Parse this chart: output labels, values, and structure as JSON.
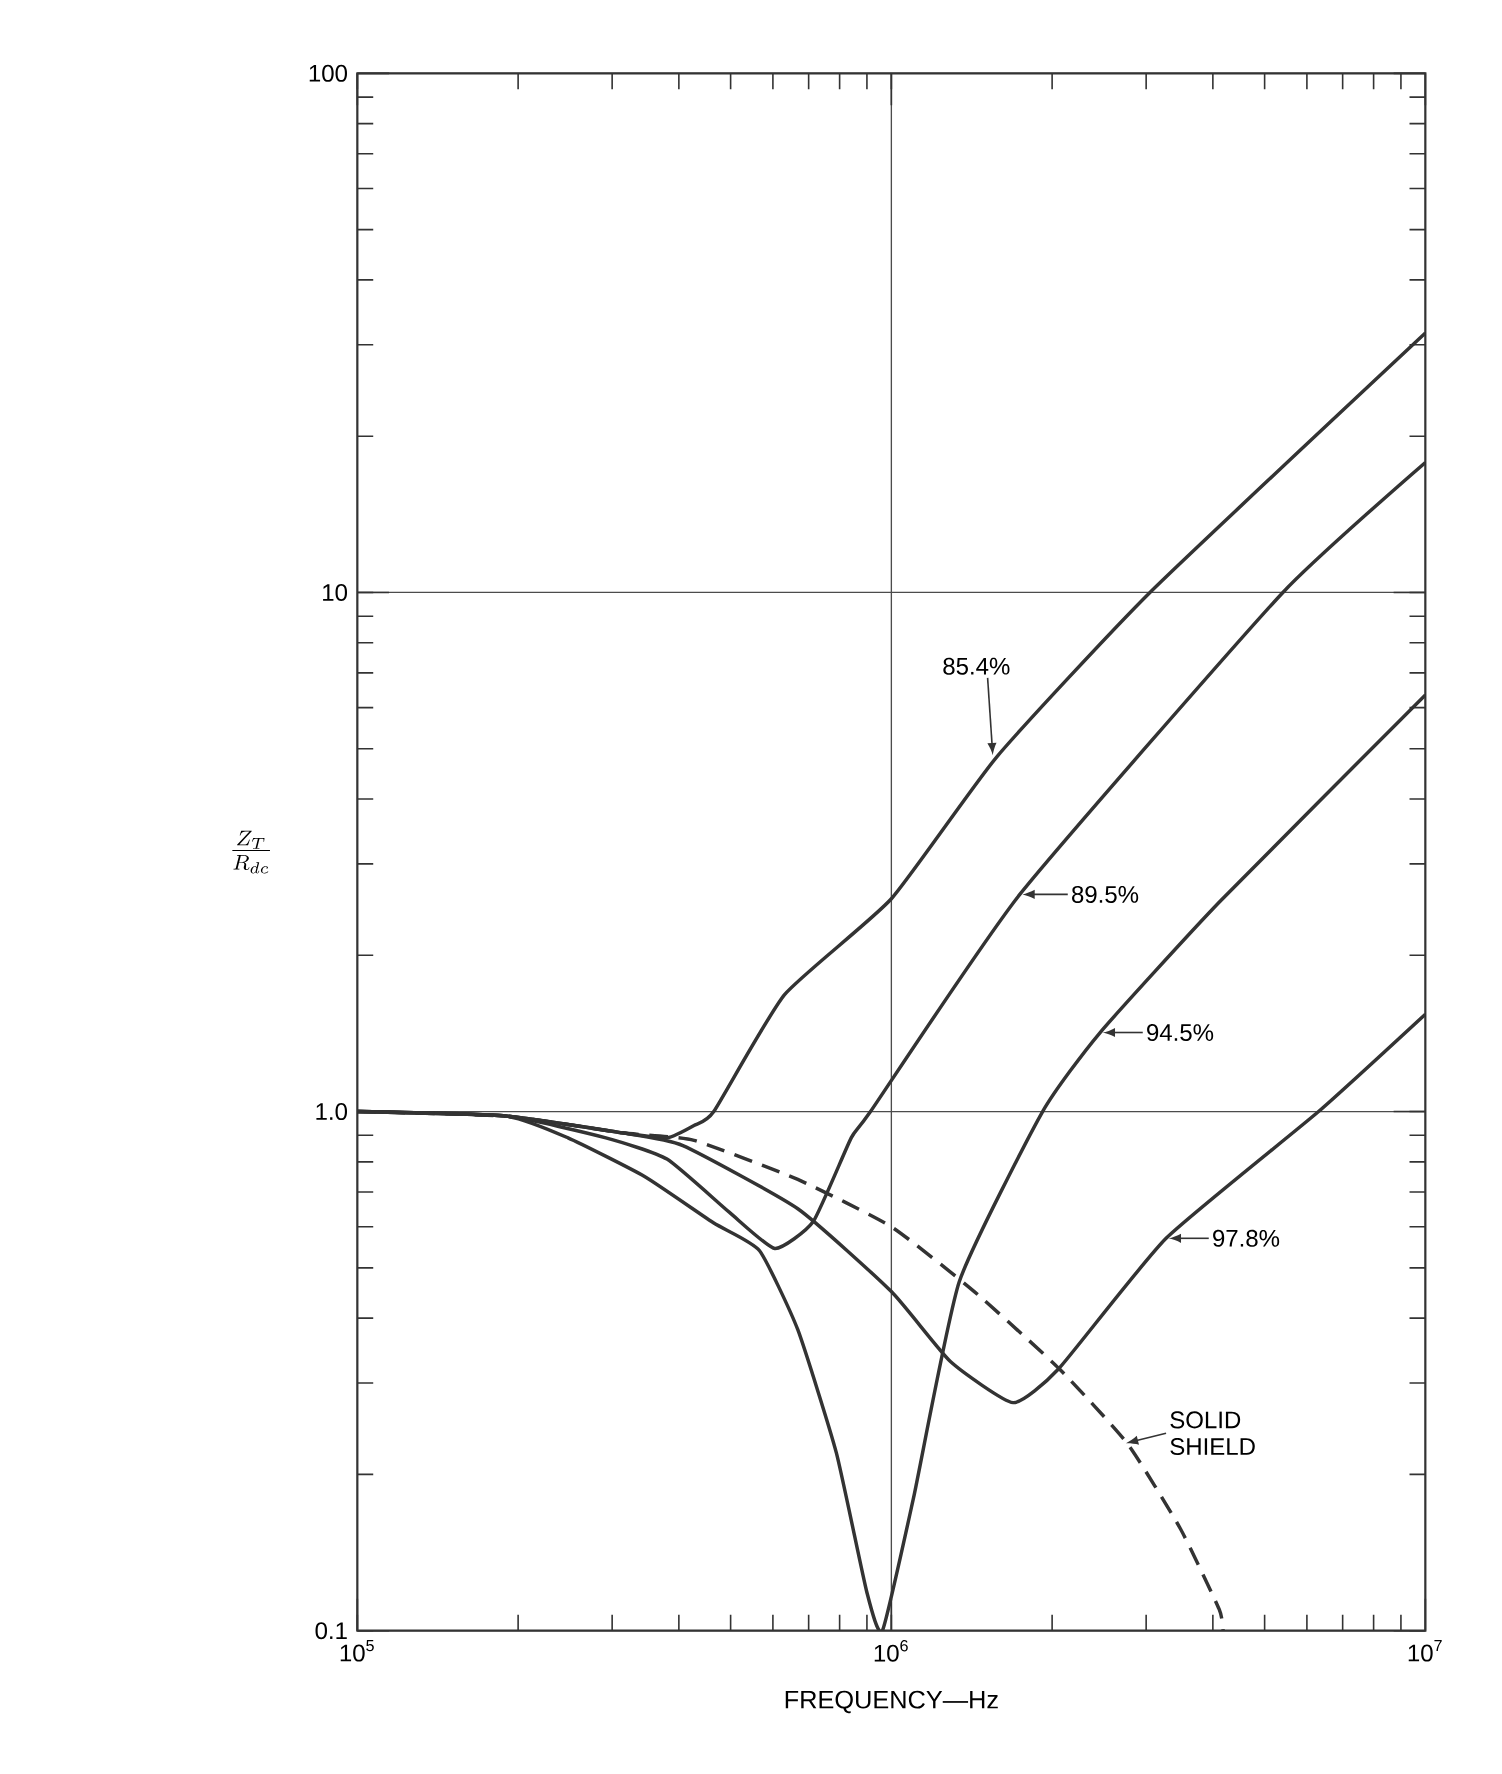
{
  "chart_data": {
    "type": "line",
    "xlabel": "FREQUENCY—Hz",
    "ylabel": "\\frac{Z_T}{R_{dc}}",
    "log": "xy",
    "grid": true,
    "marker": "none",
    "xlim": [
      100000,
      10000000
    ],
    "ylim": [
      0.1,
      100
    ],
    "xticks": [
      {
        "value": 100000,
        "label": "10$^{5}$"
      },
      {
        "value": 1000000,
        "label": "10$^{6}$"
      },
      {
        "value": 10000000,
        "label": "10$^{7}$"
      }
    ],
    "yticks": [
      0.1,
      {
        "value": 1,
        "label": "1.0"
      },
      10,
      100
    ],
    "series": [
      {
        "color": "#333333",
        "line_style": "solid",
        "x": [
          100000,
          190000,
          313000,
          380000,
          427000,
          465000,
          631000,
          1000000,
          1580000,
          3050000,
          10000000
        ],
        "values": [
          1.0,
          0.98,
          0.91,
          0.89,
          0.94,
          1.0,
          1.68,
          2.57,
          4.84,
          10,
          31.6
        ]
      },
      {
        "color": "#333333",
        "line_style": "solid",
        "x": [
          100000,
          190000,
          292000,
          380000,
          497000,
          605000,
          714000,
          841000,
          914000,
          1740000,
          5410000,
          10000000
        ],
        "values": [
          1.0,
          0.98,
          0.89,
          0.81,
          0.64,
          0.545,
          0.614,
          0.89,
          1.0,
          2.62,
          10,
          17.8
        ]
      },
      {
        "color": "#333333",
        "line_style": "solid",
        "x": [
          100000,
          190000,
          248000,
          345000,
          465000,
          566000,
          668000,
          789000,
          899000,
          962000,
          1100000,
          1340000,
          1920000,
          2460000,
          4110000,
          10000000
        ],
        "values": [
          1.0,
          0.98,
          0.89,
          0.75,
          0.61,
          0.54,
          0.38,
          0.22,
          0.119,
          0.1,
          0.18,
          0.47,
          1.0,
          1.42,
          2.53,
          6.35
        ]
      },
      {
        "color": "#333333",
        "line_style": "solid",
        "x": [
          100000,
          190000,
          313000,
          407000,
          668000,
          1000000,
          1290000,
          1690000,
          2060000,
          3270000,
          6310000,
          10000000
        ],
        "values": [
          1.0,
          0.98,
          0.91,
          0.86,
          0.65,
          0.45,
          0.33,
          0.275,
          0.32,
          0.57,
          1.0,
          1.54
        ]
      },
      {
        "color": "#333333",
        "line_style": "dashed",
        "x": [
          100000,
          190000,
          313000,
          427000,
          668000,
          1000000,
          1430000,
          2060000,
          2770000,
          3480000,
          4110000,
          4180000
        ],
        "values": [
          1.0,
          0.98,
          0.91,
          0.88,
          0.74,
          0.6,
          0.45,
          0.32,
          0.229,
          0.157,
          0.11,
          0.1
        ]
      }
    ],
    "annotations": [
      {
        "text": "85.4%",
        "x": 1550000,
        "y": 4.8
      },
      {
        "text": "89.5%",
        "x": 1740000,
        "y": 2.62
      },
      {
        "text": "94.5%",
        "x": 2460000,
        "y": 1.42
      },
      {
        "text": "97.8%",
        "x": 3270000,
        "y": 0.57
      },
      {
        "text": "SOLID SHIELD",
        "x": 2720000,
        "y": 0.229
      }
    ]
  }
}
